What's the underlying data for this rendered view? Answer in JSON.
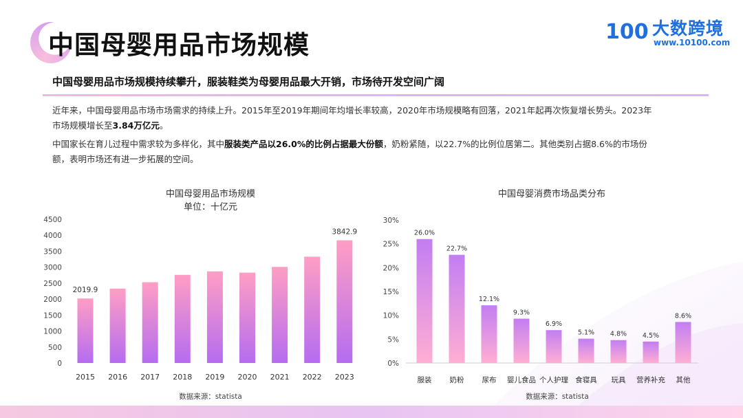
{
  "header": {
    "title": "中国母婴用品市场规模",
    "subtitle": "中国母婴用品市场规模持续攀升，服装鞋类为母婴用品最大开销，市场待开发空间广阔"
  },
  "logo": {
    "name": "大数跨境",
    "url": "www.10100.com",
    "mark_text": "100"
  },
  "body": {
    "p1_line1": "近年来，中国母婴用品市场市场需求的持续上升。2015年至2019年期间年均增长率较高，2020年市场规模略有回落，2021年起再次恢复增长势头。2023年",
    "p1_line2_prefix": "市场规模增长至",
    "p1_line2_bold": "3.84万亿元",
    "p1_line2_suffix": "。",
    "p2_line1_prefix": "中国家长在育儿过程中需求较为多样化，其中",
    "p2_line1_bold": "服装类产品以26.0%的比例占据最大份额",
    "p2_line1_suffix": "，奶粉紧随，以22.7%的比例位居第二。其他类别占据8.6%的市场份",
    "p2_line2": "额，表明市场还有进一步拓展的空间。"
  },
  "chart_data": [
    {
      "type": "bar",
      "title": "中国母婴用品市场规模",
      "subtitle": "单位：十亿元",
      "categories": [
        "2015",
        "2016",
        "2017",
        "2018",
        "2019",
        "2020",
        "2021",
        "2022",
        "2023"
      ],
      "values": [
        2019.9,
        2330,
        2530,
        2760,
        2870,
        2830,
        3010,
        3330,
        3842.9
      ],
      "data_labels": {
        "0": "2019.9",
        "8": "3842.9"
      },
      "ylim": [
        0,
        4500
      ],
      "yticks": [
        "0",
        "500",
        "1000",
        "1500",
        "2000",
        "2500",
        "3000",
        "3500",
        "4000",
        "4500"
      ],
      "source": "数据来源：statista",
      "colors": {
        "top": "#ff9ec4",
        "bottom": "#b56cf0"
      }
    },
    {
      "type": "bar",
      "title": "中国母婴消费市场品类分布",
      "categories": [
        "服装",
        "奶粉",
        "尿布",
        "婴儿食品",
        "个人护理",
        "食寝具",
        "玩具",
        "营养补充",
        "其他"
      ],
      "values": [
        26.0,
        22.7,
        12.1,
        9.3,
        6.9,
        5.1,
        4.8,
        4.5,
        8.6
      ],
      "value_labels": [
        "26.0%",
        "22.7%",
        "12.1%",
        "9.3%",
        "6.9%",
        "5.1%",
        "4.8%",
        "4.5%",
        "8.6%"
      ],
      "ylim": [
        0,
        30
      ],
      "yticks": [
        "0%",
        "5%",
        "10%",
        "15%",
        "20%",
        "25%",
        "30%"
      ],
      "source": "数据来源：statista",
      "colors": {
        "top": "#c27ef2",
        "bottom": "#ffaed3"
      }
    }
  ]
}
